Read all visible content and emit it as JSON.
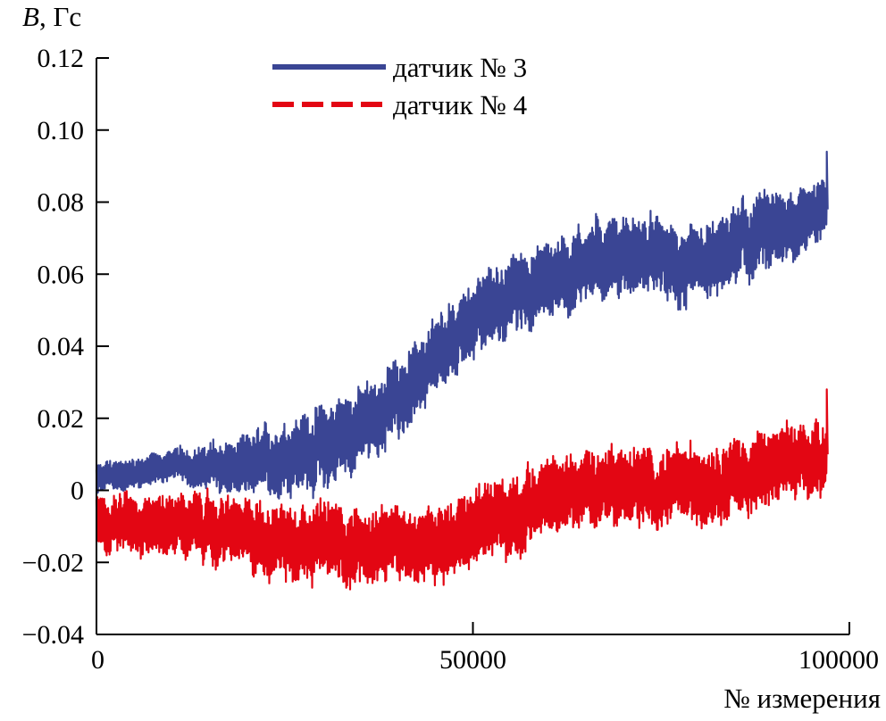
{
  "chart_data": {
    "type": "line",
    "ylabel_var": "B",
    "ylabel_unit": ", Гс",
    "xlabel": "№ измерения",
    "xlim": [
      0,
      100000
    ],
    "ylim": [
      -0.04,
      0.12
    ],
    "x_ticks": [
      0,
      50000,
      100000
    ],
    "x_tick_labels": [
      "0",
      "50000",
      "100000"
    ],
    "y_ticks": [
      -0.04,
      -0.02,
      0,
      0.02,
      0.04,
      0.06,
      0.08,
      0.1,
      0.12
    ],
    "y_tick_labels": [
      "−0.04",
      "−0.02",
      "0",
      "0.02",
      "0.04",
      "0.06",
      "0.08",
      "0.10",
      "0.12"
    ],
    "grid": false,
    "legend_position": "top-center",
    "series": [
      {
        "name": "датчик № 3",
        "color": "#3a4594",
        "style": "solid",
        "x": [
          0,
          10000,
          20000,
          30000,
          37000,
          45000,
          50000,
          58000,
          62000,
          68000,
          75000,
          80000,
          85000,
          90000,
          97000
        ],
        "center": [
          0.003,
          0.007,
          0.006,
          0.012,
          0.02,
          0.035,
          0.048,
          0.057,
          0.06,
          0.066,
          0.064,
          0.06,
          0.068,
          0.072,
          0.078
        ],
        "half_band": [
          0.004,
          0.004,
          0.008,
          0.011,
          0.01,
          0.01,
          0.01,
          0.01,
          0.01,
          0.01,
          0.01,
          0.01,
          0.01,
          0.01,
          0.008
        ],
        "end_peak": 0.094
      },
      {
        "name": "датчик № 4",
        "color": "#e30613",
        "style": "dashed",
        "x": [
          0,
          10000,
          20000,
          30000,
          37000,
          45000,
          50000,
          58000,
          62000,
          68000,
          75000,
          80000,
          85000,
          90000,
          97000
        ],
        "center": [
          -0.008,
          -0.009,
          -0.013,
          -0.014,
          -0.016,
          -0.014,
          -0.011,
          -0.004,
          -0.001,
          0.002,
          0.0,
          0.002,
          0.004,
          0.006,
          0.01
        ],
        "half_band": [
          0.007,
          0.008,
          0.009,
          0.01,
          0.01,
          0.01,
          0.01,
          0.01,
          0.01,
          0.01,
          0.01,
          0.01,
          0.01,
          0.01,
          0.009
        ],
        "end_peak": 0.028
      }
    ]
  }
}
